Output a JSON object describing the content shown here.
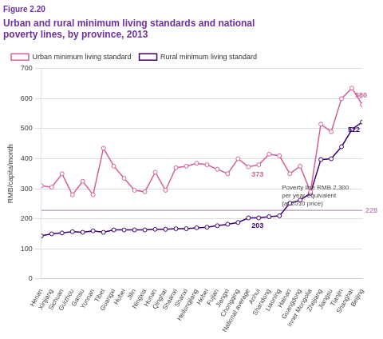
{
  "chart_data": {
    "type": "line",
    "subtitle": "Figure 2.20",
    "title": "Urban and rural minimum living standards and national\npoverty lines, by province, 2013",
    "y_label": "RMB/capita/month",
    "categories": [
      "Henan",
      "Xinjiang",
      "Sichuan",
      "Guizhou",
      "Gansu",
      "Yunnan",
      "Tibet",
      "Guangxi",
      "Hubei",
      "Jilin",
      "Ningxia",
      "Hunan",
      "Qinghai",
      "Shaanxi",
      "Shanxi",
      "Heilongjiang",
      "Hebei",
      "Fujian",
      "Jiangxi",
      "Chongqing",
      "National average",
      "Anhui",
      "Shandong",
      "Liaoning",
      "Hainan",
      "Guangdong",
      "Inner Mongolia",
      "Zhejiang",
      "Jiangsu",
      "Tianjin",
      "Shanghai",
      "Beijing"
    ],
    "series": [
      {
        "name": "Urban minimum living standard",
        "color": "#D4609A",
        "marker": "circle",
        "line_style": "solid",
        "values": [
          310,
          305,
          350,
          280,
          325,
          280,
          435,
          375,
          335,
          295,
          290,
          355,
          295,
          370,
          375,
          385,
          380,
          365,
          350,
          400,
          373,
          380,
          415,
          410,
          350,
          375,
          290,
          515,
          490,
          600,
          635,
          580
        ]
      },
      {
        "name": "Rural minimum living standard",
        "color": "#3D0070",
        "marker": "circle",
        "line_style": "solid",
        "values": [
          143,
          150,
          153,
          157,
          155,
          160,
          155,
          163,
          163,
          163,
          163,
          165,
          165,
          167,
          167,
          170,
          172,
          177,
          182,
          188,
          203,
          203,
          207,
          210,
          252,
          262,
          285,
          397,
          400,
          440,
          497,
          522
        ]
      }
    ],
    "hlines": [
      {
        "y": 228,
        "color": "#C090C0"
      }
    ],
    "annotations": [
      {
        "text": "373",
        "x": "National average",
        "series": "Urban minimum living standard",
        "color": "#D4609A"
      },
      {
        "text": "203",
        "x": "National average",
        "series": "Rural minimum living standard",
        "color": "#3D0070"
      },
      {
        "text": "580",
        "x": "Shanghai",
        "series": "Urban minimum living standard",
        "color": "#D4609A"
      },
      {
        "text": "522",
        "x": "Beijing",
        "series": "Rural minimum living standard",
        "color": "#3D0070"
      },
      {
        "text": "228",
        "x": "Beijing",
        "y": 228,
        "color": "#C090C0"
      },
      {
        "text": "Poverty line RMB 2,300\nper year equivalent\n(at 2010 price)",
        "x": "Liaoning",
        "y": 228
      }
    ],
    "ylim": [
      0,
      700
    ],
    "yticks": [
      0,
      100,
      200,
      300,
      400,
      500,
      600,
      700
    ],
    "grid": "y",
    "legend": "upper left"
  }
}
